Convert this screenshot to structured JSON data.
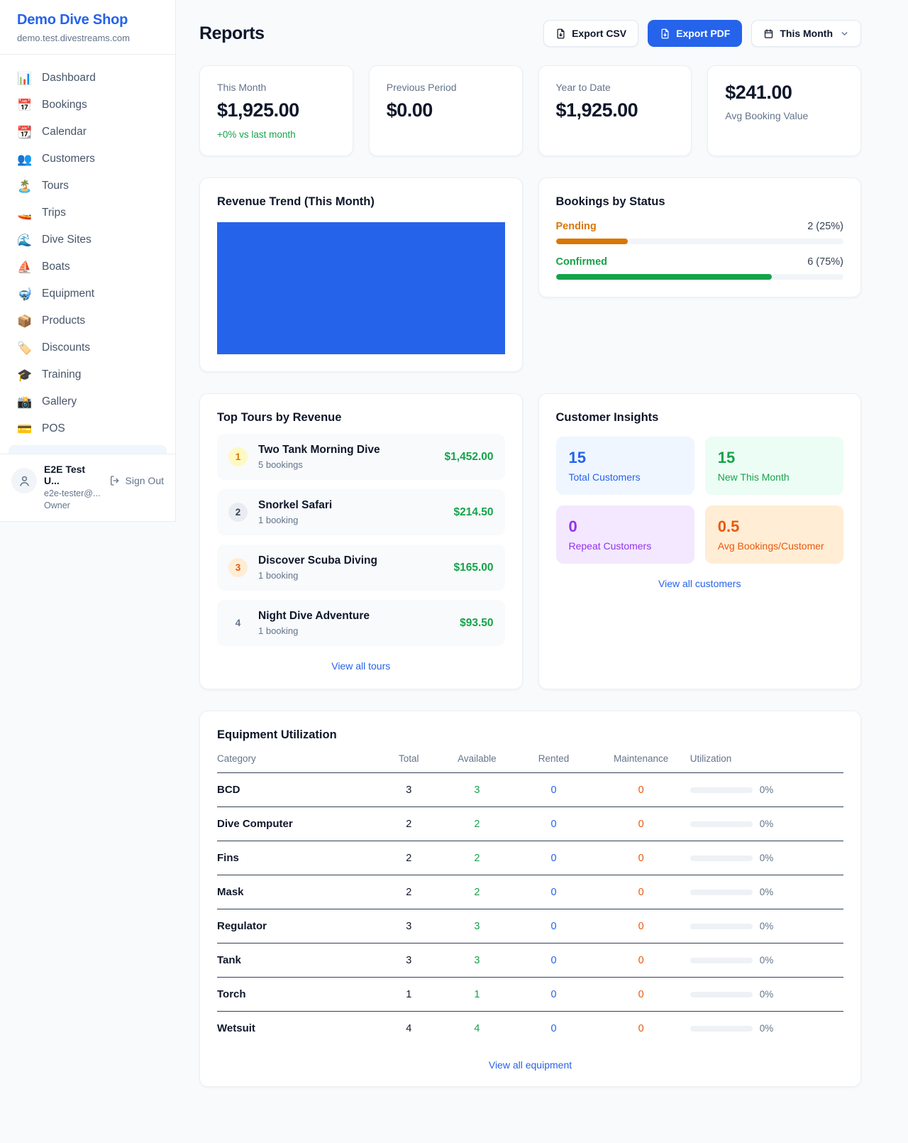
{
  "colors": {
    "accent": "#2563eb",
    "green": "#16a34a",
    "amber": "#d97706",
    "deep_orange": "#ea580c",
    "purple": "#9333ea"
  },
  "sidebar": {
    "brand": "Demo Dive Shop",
    "domain": "demo.test.divestreams.com",
    "items": [
      {
        "id": "dashboard",
        "label": "Dashboard",
        "icon": "bar-chart-icon",
        "glyph": "📊"
      },
      {
        "id": "bookings",
        "label": "Bookings",
        "icon": "calendar-date-icon",
        "glyph": "📅"
      },
      {
        "id": "calendar",
        "label": "Calendar",
        "icon": "tear-off-calendar-icon",
        "glyph": "📆"
      },
      {
        "id": "customers",
        "label": "Customers",
        "icon": "people-icon",
        "glyph": "👥"
      },
      {
        "id": "tours",
        "label": "Tours",
        "icon": "island-icon",
        "glyph": "🏝️"
      },
      {
        "id": "trips",
        "label": "Trips",
        "icon": "speedboat-icon",
        "glyph": "🚤"
      },
      {
        "id": "dive-sites",
        "label": "Dive Sites",
        "icon": "wave-icon",
        "glyph": "🌊"
      },
      {
        "id": "boats",
        "label": "Boats",
        "icon": "sailboat-icon",
        "glyph": "⛵"
      },
      {
        "id": "equipment",
        "label": "Equipment",
        "icon": "diving-mask-icon",
        "glyph": "🤿"
      },
      {
        "id": "products",
        "label": "Products",
        "icon": "package-icon",
        "glyph": "📦"
      },
      {
        "id": "discounts",
        "label": "Discounts",
        "icon": "label-tag-icon",
        "glyph": "🏷️"
      },
      {
        "id": "training",
        "label": "Training",
        "icon": "graduation-cap-icon",
        "glyph": "🎓"
      },
      {
        "id": "gallery",
        "label": "Gallery",
        "icon": "camera-icon",
        "glyph": "📸"
      },
      {
        "id": "pos",
        "label": "POS",
        "icon": "credit-card-icon",
        "glyph": "💳"
      }
    ],
    "user": {
      "name": "E2E Test U...",
      "email": "e2e-tester@...",
      "role": "Owner",
      "sign_out": "Sign Out"
    }
  },
  "header": {
    "title": "Reports",
    "export_csv": "Export CSV",
    "export_pdf": "Export PDF",
    "period": "This Month"
  },
  "stats": {
    "cards": [
      {
        "label": "This Month",
        "value": "$1,925.00",
        "delta": "+0% vs last month"
      },
      {
        "label": "Previous Period",
        "value": "$0.00"
      },
      {
        "label": "Year to Date",
        "value": "$1,925.00"
      },
      {
        "label": "Avg Booking Value",
        "value": "$241.00"
      }
    ]
  },
  "revenue_trend": {
    "title": "Revenue Trend (This Month)",
    "fill_color": "#2563eb"
  },
  "bookings_by_status": {
    "title": "Bookings by Status",
    "rows": [
      {
        "label": "Pending",
        "value": "2 (25%)",
        "pct": 25,
        "color": "#d97706"
      },
      {
        "label": "Confirmed",
        "value": "6 (75%)",
        "pct": 75,
        "color": "#16a34a"
      }
    ]
  },
  "top_tours": {
    "title": "Top Tours by Revenue",
    "items": [
      {
        "rank": "1",
        "name": "Two Tank Morning Dive",
        "bookings": "5 bookings",
        "revenue": "$1,452.00",
        "badge_bg": "#fef9c3",
        "badge_color": "#d97706"
      },
      {
        "rank": "2",
        "name": "Snorkel Safari",
        "bookings": "1 booking",
        "revenue": "$214.50",
        "badge_bg": "#e9edf2",
        "badge_color": "#334155"
      },
      {
        "rank": "3",
        "name": "Discover Scuba Diving",
        "bookings": "1 booking",
        "revenue": "$165.00",
        "badge_bg": "#ffedd5",
        "badge_color": "#ea580c"
      },
      {
        "rank": "4",
        "name": "Night Dive Adventure",
        "bookings": "1 booking",
        "revenue": "$93.50",
        "badge_bg": "transparent",
        "badge_color": "#64748b"
      }
    ],
    "view_all": "View all tours"
  },
  "customer_insights": {
    "title": "Customer Insights",
    "tiles": [
      {
        "value": "15",
        "label": "Total Customers",
        "bg": "#eff6ff",
        "color": "#2563eb"
      },
      {
        "value": "15",
        "label": "New This Month",
        "bg": "#ecfdf5",
        "color": "#16a34a"
      },
      {
        "value": "0",
        "label": "Repeat Customers",
        "bg": "#f3e8ff",
        "color": "#9333ea"
      },
      {
        "value": "0.5",
        "label": "Avg Bookings/Customer",
        "bg": "#ffedd5",
        "color": "#ea580c"
      }
    ],
    "view_all": "View all customers"
  },
  "equipment": {
    "title": "Equipment Utilization",
    "columns": [
      "Category",
      "Total",
      "Available",
      "Rented",
      "Maintenance",
      "Utilization"
    ],
    "rows": [
      {
        "category": "BCD",
        "total": "3",
        "available": "3",
        "rented": "0",
        "maintenance": "0",
        "utilization": "0%",
        "pct": 0
      },
      {
        "category": "Dive Computer",
        "total": "2",
        "available": "2",
        "rented": "0",
        "maintenance": "0",
        "utilization": "0%",
        "pct": 0
      },
      {
        "category": "Fins",
        "total": "2",
        "available": "2",
        "rented": "0",
        "maintenance": "0",
        "utilization": "0%",
        "pct": 0
      },
      {
        "category": "Mask",
        "total": "2",
        "available": "2",
        "rented": "0",
        "maintenance": "0",
        "utilization": "0%",
        "pct": 0
      },
      {
        "category": "Regulator",
        "total": "3",
        "available": "3",
        "rented": "0",
        "maintenance": "0",
        "utilization": "0%",
        "pct": 0
      },
      {
        "category": "Tank",
        "total": "3",
        "available": "3",
        "rented": "0",
        "maintenance": "0",
        "utilization": "0%",
        "pct": 0
      },
      {
        "category": "Torch",
        "total": "1",
        "available": "1",
        "rented": "0",
        "maintenance": "0",
        "utilization": "0%",
        "pct": 0
      },
      {
        "category": "Wetsuit",
        "total": "4",
        "available": "4",
        "rented": "0",
        "maintenance": "0",
        "utilization": "0%",
        "pct": 0
      }
    ],
    "view_all": "View all equipment"
  },
  "chart_data": [
    {
      "type": "area",
      "title": "Revenue Trend (This Month)",
      "x": [],
      "values": [],
      "fill_color": "#2563eb",
      "note": "plot area rendered as a fully-filled solid blue block; no visible axes, ticks or labels"
    },
    {
      "type": "bar",
      "title": "Bookings by Status",
      "categories": [
        "Pending",
        "Confirmed"
      ],
      "values": [
        2,
        6
      ],
      "percent": [
        25,
        75
      ],
      "colors": [
        "#d97706",
        "#16a34a"
      ],
      "orientation": "horizontal"
    }
  ]
}
